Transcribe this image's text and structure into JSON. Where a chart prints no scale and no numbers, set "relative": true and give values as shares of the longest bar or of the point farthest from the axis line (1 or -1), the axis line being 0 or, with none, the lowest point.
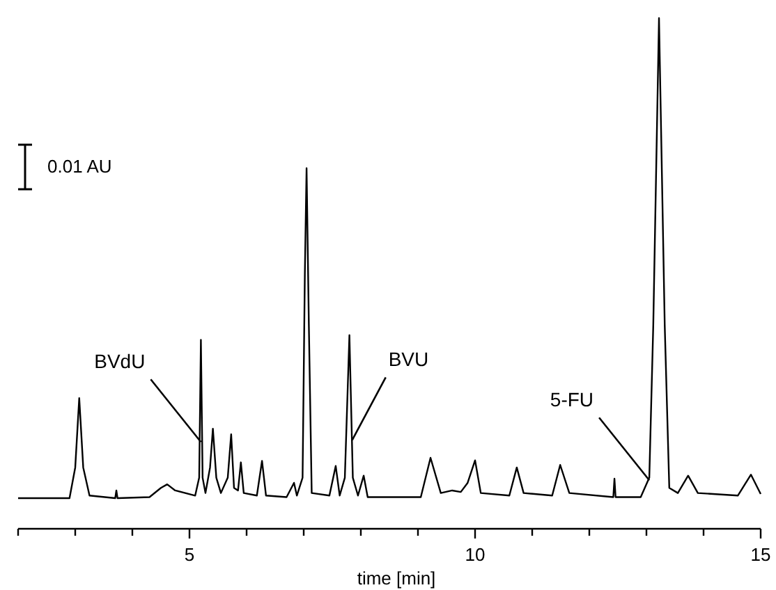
{
  "chart_data": {
    "type": "line",
    "xlabel": "time [min]",
    "relative": true,
    "xlim": [
      2,
      15
    ],
    "xticks": [
      {
        "value": 2,
        "label": null
      },
      {
        "value": 3,
        "label": null
      },
      {
        "value": 4,
        "label": null
      },
      5,
      {
        "value": 6,
        "label": null
      },
      {
        "value": 7,
        "label": null
      },
      {
        "value": 8,
        "label": null
      },
      {
        "value": 9,
        "label": null
      },
      10,
      {
        "value": 11,
        "label": null
      },
      {
        "value": 12,
        "label": null
      },
      {
        "value": 13,
        "label": null
      },
      {
        "value": 14,
        "label": null
      },
      15
    ],
    "tick_labels": "x",
    "grid": false,
    "marker": "none",
    "line_style": "solid",
    "series": [
      {
        "color": "#000000",
        "x": [
          2.0,
          2.9,
          3.0,
          3.07,
          3.14,
          3.25,
          3.7,
          3.72,
          3.74,
          4.3,
          4.5,
          4.61,
          4.75,
          5.1,
          5.17,
          5.2,
          5.23,
          5.28,
          5.36,
          5.41,
          5.47,
          5.55,
          5.67,
          5.73,
          5.78,
          5.85,
          5.9,
          5.95,
          6.18,
          6.27,
          6.34,
          6.7,
          6.83,
          6.88,
          6.98,
          7.02,
          7.05,
          7.09,
          7.14,
          7.45,
          7.56,
          7.63,
          7.72,
          7.8,
          7.86,
          7.95,
          8.05,
          8.12,
          9.05,
          9.22,
          9.4,
          9.6,
          9.75,
          9.87,
          10.0,
          10.1,
          10.6,
          10.73,
          10.85,
          11.35,
          11.49,
          11.65,
          12.42,
          12.44,
          12.46,
          12.9,
          13.05,
          13.12,
          13.22,
          13.32,
          13.4,
          13.55,
          13.73,
          13.9,
          14.6,
          14.83,
          15.0
        ],
        "values": [
          0.06,
          0.06,
          0.12,
          0.256,
          0.12,
          0.065,
          0.06,
          0.075,
          0.06,
          0.062,
          0.08,
          0.087,
          0.075,
          0.065,
          0.1,
          0.37,
          0.1,
          0.07,
          0.12,
          0.196,
          0.1,
          0.07,
          0.1,
          0.185,
          0.08,
          0.075,
          0.13,
          0.07,
          0.065,
          0.133,
          0.065,
          0.062,
          0.09,
          0.065,
          0.1,
          0.5,
          0.706,
          0.4,
          0.07,
          0.065,
          0.123,
          0.065,
          0.1,
          0.379,
          0.1,
          0.065,
          0.104,
          0.062,
          0.062,
          0.139,
          0.07,
          0.075,
          0.072,
          0.09,
          0.134,
          0.07,
          0.065,
          0.12,
          0.07,
          0.065,
          0.125,
          0.07,
          0.062,
          0.098,
          0.062,
          0.062,
          0.1,
          0.4,
          1.0,
          0.4,
          0.08,
          0.07,
          0.104,
          0.07,
          0.065,
          0.106,
          0.068
        ]
      }
    ],
    "annotations": [
      "0.01 AU",
      {
        "text": "BVdU",
        "x": 5.2,
        "y": 0.17
      },
      {
        "text": "BVU",
        "x": 7.85,
        "y": 0.174
      },
      {
        "text": "5-FU",
        "x": 13.05,
        "y": 0.095
      }
    ]
  }
}
